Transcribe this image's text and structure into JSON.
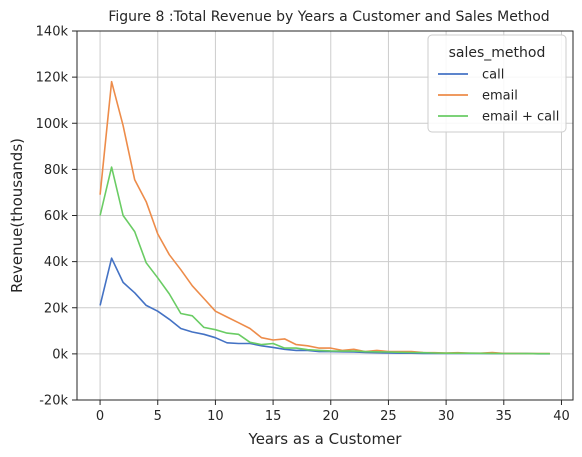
{
  "chart_data": {
    "type": "line",
    "title": "Figure 8 :Total Revenue by Years a Customer and Sales Method",
    "xlabel": "Years as a Customer",
    "ylabel": "Revenue(thousands)",
    "xlim": [
      -2,
      41
    ],
    "ylim": [
      -20000,
      140000
    ],
    "xticks": [
      0,
      5,
      10,
      15,
      20,
      25,
      30,
      35,
      40
    ],
    "yticks": [
      -20000,
      0,
      20000,
      40000,
      60000,
      80000,
      100000,
      120000,
      140000
    ],
    "ytick_labels": [
      "-20k",
      "0k",
      "20k",
      "40k",
      "60k",
      "80k",
      "100k",
      "120k",
      "140k"
    ],
    "grid": true,
    "legend": {
      "title": "sales_method",
      "placement": "top-right"
    },
    "x": [
      0,
      1,
      2,
      3,
      4,
      5,
      6,
      7,
      8,
      9,
      10,
      11,
      12,
      13,
      14,
      15,
      16,
      17,
      18,
      19,
      20,
      21,
      22,
      23,
      24,
      25,
      26,
      27,
      28,
      29,
      30,
      31,
      32,
      33,
      34,
      35,
      36,
      37,
      38,
      39
    ],
    "series": [
      {
        "name": "call",
        "color": "#4472c4",
        "values": [
          21000,
          41500,
          31000,
          26500,
          21000,
          18500,
          15000,
          11000,
          9500,
          8500,
          7000,
          4800,
          4500,
          4500,
          3500,
          2800,
          2000,
          1500,
          1500,
          1000,
          1000,
          900,
          800,
          600,
          500,
          400,
          300,
          300,
          200,
          200,
          200,
          200,
          150,
          150,
          100,
          100,
          100,
          100,
          50,
          50
        ]
      },
      {
        "name": "email",
        "color": "#ed8c4a",
        "values": [
          69000,
          118000,
          99000,
          75500,
          66000,
          52000,
          43000,
          36500,
          29500,
          24000,
          18500,
          16000,
          13500,
          11000,
          7000,
          6000,
          6500,
          4000,
          3500,
          2500,
          2500,
          1500,
          2000,
          1000,
          1500,
          1000,
          1000,
          1000,
          600,
          500,
          400,
          500,
          300,
          300,
          600,
          200,
          200,
          150,
          100,
          100
        ]
      },
      {
        "name": "email + call",
        "color": "#6acc64",
        "values": [
          60000,
          81000,
          60000,
          53000,
          39500,
          33000,
          26000,
          17500,
          16500,
          11500,
          10500,
          9000,
          8500,
          5000,
          4000,
          4500,
          2500,
          2500,
          1800,
          1500,
          1300,
          1200,
          1200,
          1000,
          900,
          800,
          700,
          600,
          500,
          400,
          300,
          300,
          300,
          250,
          200,
          150,
          150,
          100,
          80,
          60
        ]
      }
    ]
  }
}
